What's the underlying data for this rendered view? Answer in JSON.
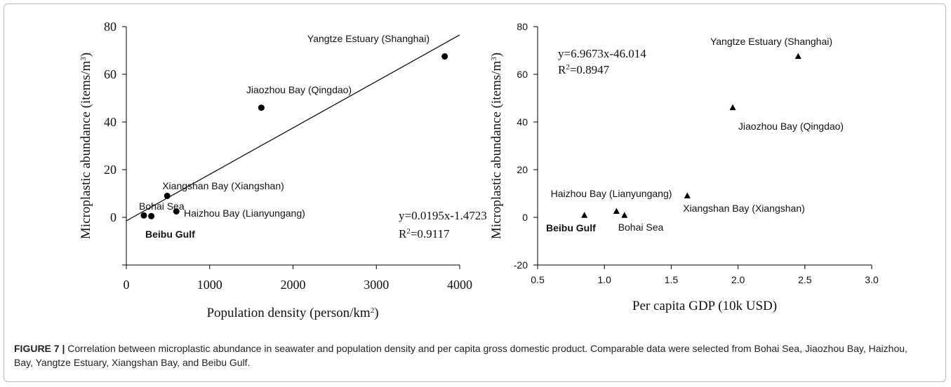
{
  "caption": {
    "label": "FIGURE 7 |",
    "text": "Correlation between microplastic abundance in seawater and population density and per capita gross domestic product. Comparable data were selected from Bohai Sea, Jiaozhou Bay, Haizhou, Bay, Yangtze Estuary, Xiangshan Bay, and Beibu Gulf."
  },
  "chart_data": [
    {
      "type": "scatter",
      "marker": "circle",
      "xlabel": "Population density (person/km",
      "xlabel_sup": "2",
      "xlabel_end": ")",
      "ylabel": "Microplastic abundance (items/m",
      "ylabel_sup": "3",
      "ylabel_end": ")",
      "xlim": [
        0,
        4000
      ],
      "ylim": [
        -20,
        80
      ],
      "xticks": [
        0,
        1000,
        2000,
        3000,
        4000
      ],
      "yticks": [
        0,
        20,
        40,
        60,
        80
      ],
      "points": [
        {
          "x": 3820,
          "y": 67.5
        },
        {
          "x": 1620,
          "y": 46
        },
        {
          "x": 490,
          "y": 9
        },
        {
          "x": 600,
          "y": 2.5
        },
        {
          "x": 210,
          "y": 0.8
        },
        {
          "x": 300,
          "y": 0.5
        }
      ],
      "point_labels": [
        {
          "text": "Yangtze Estuary (Shanghai)",
          "bold": false
        },
        {
          "text": "Jiaozhou Bay (Qingdao)",
          "bold": false
        },
        {
          "text": "Xiangshan Bay (Xiangshan)",
          "bold": false
        },
        {
          "text": "Haizhou Bay (Lianyungang)",
          "bold": false
        },
        {
          "text": "Bohai Sea",
          "bold": false
        },
        {
          "text": "Beibu Gulf",
          "bold": true
        }
      ],
      "fit": {
        "slope": 0.0195,
        "intercept": -1.4723
      },
      "equation": "y=0.0195x-1.4723",
      "r2_prefix": "R",
      "r2_sup": "2",
      "r2_value": "=0.9117"
    },
    {
      "type": "scatter",
      "marker": "triangle",
      "xlabel": "Per capita GDP (10k USD)",
      "ylabel": "Microplastic abundance (items/m",
      "ylabel_sup": "3",
      "ylabel_end": ")",
      "xlim": [
        0.5,
        3.0
      ],
      "ylim": [
        -20,
        80
      ],
      "xticks": [
        "0.5",
        "1.0",
        "1.5",
        "2.0",
        "2.5",
        "3.0"
      ],
      "yticks": [
        "-20",
        "0",
        "20",
        "40",
        "60",
        "80"
      ],
      "points": [
        {
          "x": 2.45,
          "y": 67.5
        },
        {
          "x": 1.96,
          "y": 46
        },
        {
          "x": 1.62,
          "y": 9
        },
        {
          "x": 1.09,
          "y": 2.5
        },
        {
          "x": 1.15,
          "y": 0.8
        },
        {
          "x": 0.85,
          "y": 0.8
        }
      ],
      "point_labels": [
        {
          "text": "Yangtze Estuary (Shanghai)",
          "bold": false
        },
        {
          "text": "Jiaozhou Bay (Qingdao)",
          "bold": false
        },
        {
          "text": "Xiangshan Bay (Xiangshan)",
          "bold": false
        },
        {
          "text": "Haizhou Bay (Lianyungang)",
          "bold": false
        },
        {
          "text": "Bohai Sea",
          "bold": false
        },
        {
          "text": "Beibu Gulf",
          "bold": true
        }
      ],
      "fit": {
        "slope": 6.9673,
        "intercept": -46.014
      },
      "equation": "y=6.9673x-46.014",
      "r2_prefix": "R",
      "r2_sup": "2",
      "r2_value": "=0.8947"
    }
  ]
}
